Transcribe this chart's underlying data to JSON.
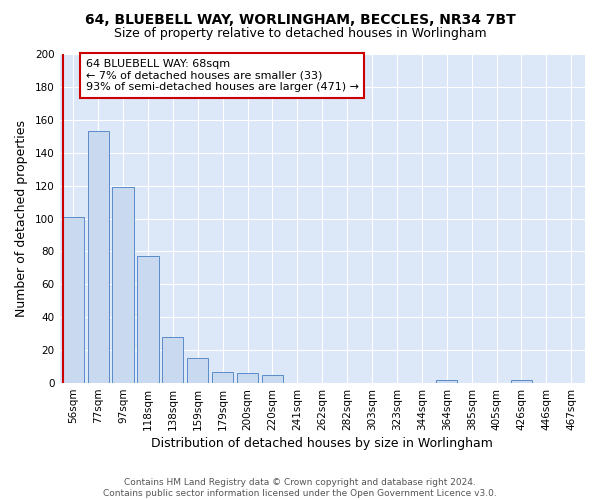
{
  "title_line1": "64, BLUEBELL WAY, WORLINGHAM, BECCLES, NR34 7BT",
  "title_line2": "Size of property relative to detached houses in Worlingham",
  "xlabel": "Distribution of detached houses by size in Worlingham",
  "ylabel": "Number of detached properties",
  "categories": [
    "56sqm",
    "77sqm",
    "97sqm",
    "118sqm",
    "138sqm",
    "159sqm",
    "179sqm",
    "200sqm",
    "220sqm",
    "241sqm",
    "262sqm",
    "282sqm",
    "303sqm",
    "323sqm",
    "344sqm",
    "364sqm",
    "385sqm",
    "405sqm",
    "426sqm",
    "446sqm",
    "467sqm"
  ],
  "values": [
    101,
    153,
    119,
    77,
    28,
    15,
    7,
    6,
    5,
    0,
    0,
    0,
    0,
    0,
    0,
    2,
    0,
    0,
    2,
    0,
    0
  ],
  "bar_color": "#c9d9f0",
  "bar_edge_color": "#5b8cc8",
  "redline_color": "#cc0000",
  "annotation_text": "64 BLUEBELL WAY: 68sqm\n← 7% of detached houses are smaller (33)\n93% of semi-detached houses are larger (471) →",
  "annotation_box_color": "#ffffff",
  "annotation_box_edge": "#cc0000",
  "ylim": [
    0,
    200
  ],
  "yticks": [
    0,
    20,
    40,
    60,
    80,
    100,
    120,
    140,
    160,
    180,
    200
  ],
  "background_color": "#dce8f8",
  "fig_background": "#ffffff",
  "footer_text": "Contains HM Land Registry data © Crown copyright and database right 2024.\nContains public sector information licensed under the Open Government Licence v3.0.",
  "grid_color": "#ffffff",
  "title_fontsize": 10,
  "subtitle_fontsize": 9,
  "tick_fontsize": 7.5,
  "label_fontsize": 9,
  "annotation_fontsize": 8,
  "footer_fontsize": 6.5
}
